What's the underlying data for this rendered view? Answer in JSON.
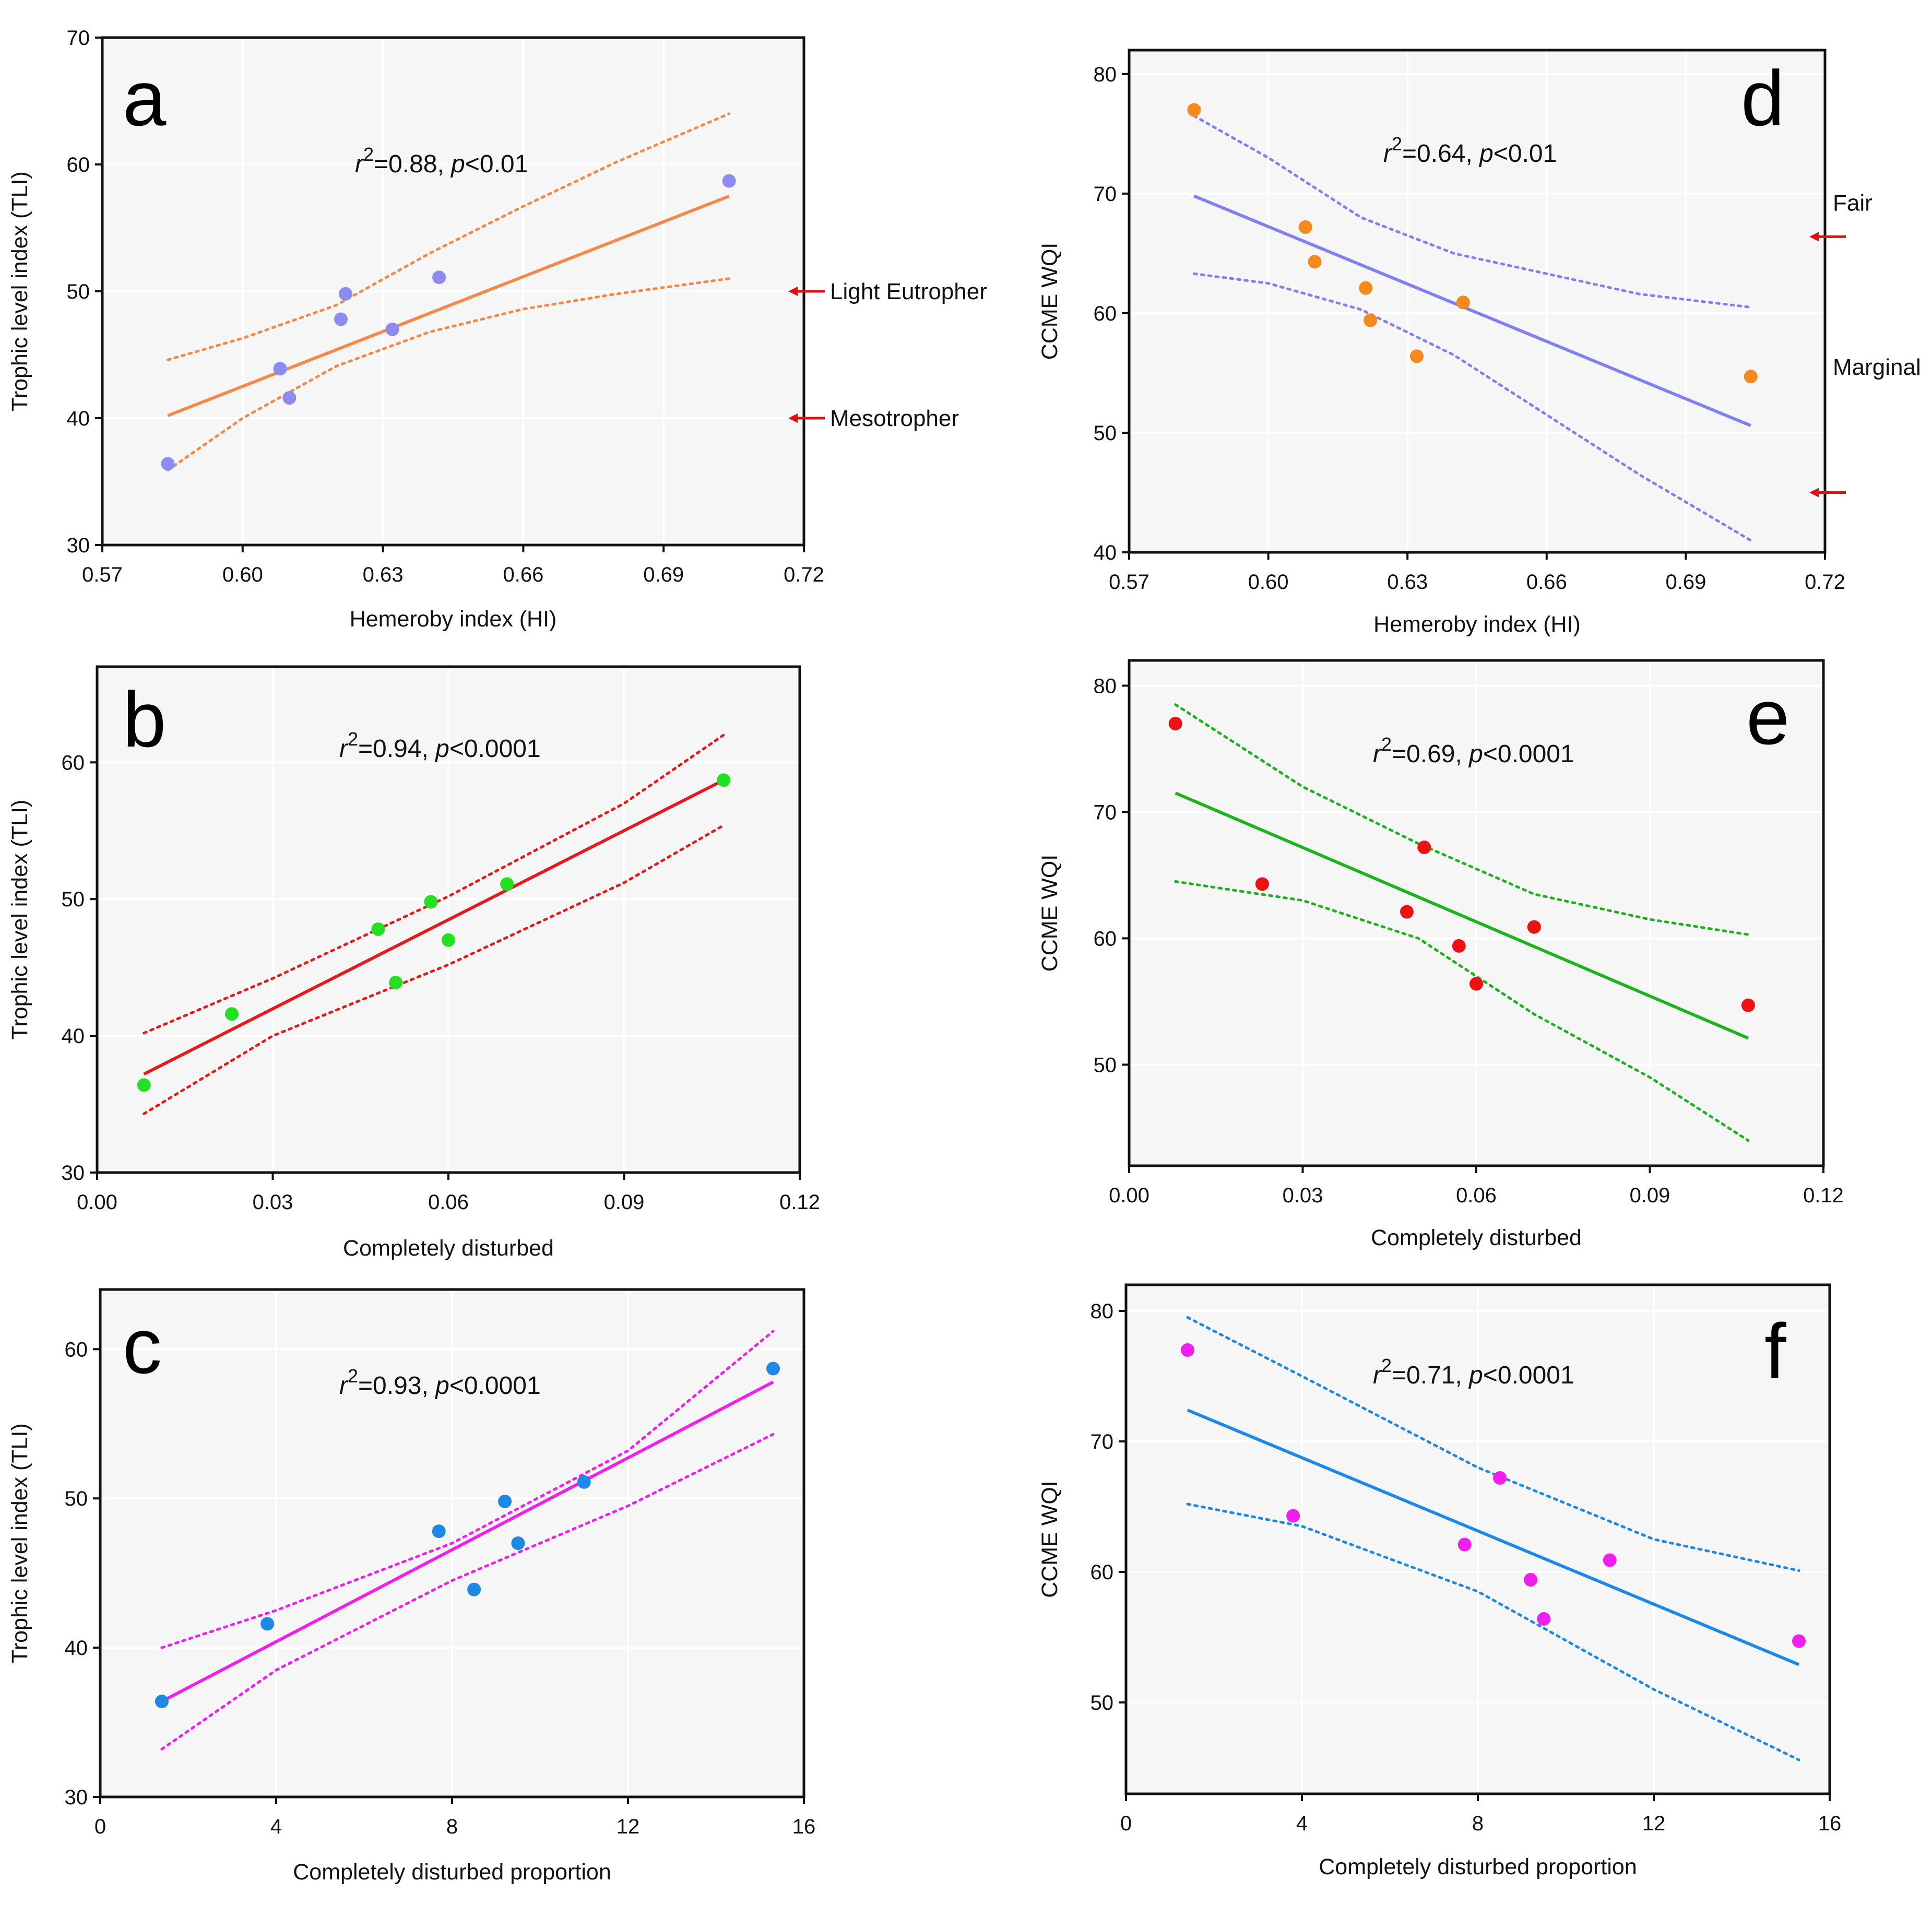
{
  "chart_data": [
    {
      "id": "a",
      "type": "scatter",
      "panel_letter": "a",
      "xlabel": "Hemeroby index (HI)",
      "ylabel": "Trophic  level index (TLI)",
      "xlim": [
        0.57,
        0.72
      ],
      "ylim": [
        30,
        70
      ],
      "xticks": [
        "0.57",
        "0.60",
        "0.63",
        "0.66",
        "0.69",
        "0.72"
      ],
      "yticks": [
        "30",
        "40",
        "50",
        "60",
        "70"
      ],
      "stat_r2": "0.88",
      "stat_p": "0.01",
      "stat_op": "<",
      "point_color": "#8c8cf0",
      "line_color": "#f5894a",
      "band_color": "#f5894a",
      "points": [
        [
          0.584,
          36.4
        ],
        [
          0.608,
          43.9
        ],
        [
          0.61,
          41.6
        ],
        [
          0.621,
          47.8
        ],
        [
          0.622,
          49.8
        ],
        [
          0.632,
          47.0
        ],
        [
          0.642,
          51.1
        ],
        [
          0.704,
          58.7
        ]
      ],
      "fit": [
        [
          0.584,
          40.2
        ],
        [
          0.704,
          57.5
        ]
      ],
      "ci_upper": [
        [
          0.584,
          44.6
        ],
        [
          0.6,
          46.3
        ],
        [
          0.62,
          48.9
        ],
        [
          0.64,
          53.0
        ],
        [
          0.66,
          56.7
        ],
        [
          0.68,
          60.2
        ],
        [
          0.704,
          64.0
        ]
      ],
      "ci_lower": [
        [
          0.584,
          35.9
        ],
        [
          0.6,
          40.0
        ],
        [
          0.62,
          44.1
        ],
        [
          0.64,
          46.8
        ],
        [
          0.66,
          48.6
        ],
        [
          0.68,
          49.8
        ],
        [
          0.704,
          51.0
        ]
      ],
      "ref_lines": [
        {
          "value": 50,
          "label": "Light Eutropher"
        },
        {
          "value": 40,
          "label": "Mesotropher"
        }
      ]
    },
    {
      "id": "b",
      "type": "scatter",
      "panel_letter": "b",
      "xlabel": "Completely disturbed",
      "ylabel": "Trophic  level index (TLI)",
      "xlim": [
        0.0,
        0.12
      ],
      "ylim": [
        30,
        67
      ],
      "xticks": [
        "0.00",
        "0.03",
        "0.06",
        "0.09",
        "0.12"
      ],
      "yticks": [
        "30",
        "40",
        "50",
        "60"
      ],
      "stat_r2": "0.94",
      "stat_p": "0.0001",
      "stat_op": "<",
      "point_color": "#22e022",
      "line_color": "#e51a1a",
      "band_color": "#e51a1a",
      "points": [
        [
          0.008,
          36.4
        ],
        [
          0.023,
          41.6
        ],
        [
          0.048,
          47.8
        ],
        [
          0.051,
          43.9
        ],
        [
          0.057,
          49.8
        ],
        [
          0.06,
          47.0
        ],
        [
          0.07,
          51.1
        ],
        [
          0.107,
          58.7
        ]
      ],
      "fit": [
        [
          0.008,
          37.2
        ],
        [
          0.107,
          58.7
        ]
      ],
      "ci_upper": [
        [
          0.008,
          40.2
        ],
        [
          0.03,
          44.2
        ],
        [
          0.06,
          50.2
        ],
        [
          0.09,
          57.0
        ],
        [
          0.107,
          62.0
        ]
      ],
      "ci_lower": [
        [
          0.008,
          34.3
        ],
        [
          0.03,
          40.0
        ],
        [
          0.06,
          45.2
        ],
        [
          0.09,
          51.2
        ],
        [
          0.107,
          55.4
        ]
      ],
      "ref_lines": []
    },
    {
      "id": "c",
      "type": "scatter",
      "panel_letter": "c",
      "xlabel": "Completely disturbed proportion",
      "ylabel": "Trophic  level index (TLI)",
      "xlim": [
        0,
        16
      ],
      "ylim": [
        30,
        64
      ],
      "xticks": [
        "0",
        "4",
        "8",
        "12",
        "16"
      ],
      "yticks": [
        "30",
        "40",
        "50",
        "60"
      ],
      "stat_r2": "0.93",
      "stat_p": "0.0001",
      "stat_op": "<",
      "point_color": "#1e88e5",
      "line_color": "#f01ff0",
      "band_color": "#f01ff0",
      "points": [
        [
          1.4,
          36.4
        ],
        [
          3.8,
          41.6
        ],
        [
          7.7,
          47.8
        ],
        [
          8.5,
          43.9
        ],
        [
          9.2,
          49.8
        ],
        [
          9.5,
          47.0
        ],
        [
          11.0,
          51.1
        ],
        [
          15.3,
          58.7
        ]
      ],
      "fit": [
        [
          1.4,
          36.4
        ],
        [
          15.3,
          57.8
        ]
      ],
      "ci_upper": [
        [
          1.4,
          40.0
        ],
        [
          4,
          42.5
        ],
        [
          8,
          47.0
        ],
        [
          12,
          53.2
        ],
        [
          15.3,
          61.2
        ]
      ],
      "ci_lower": [
        [
          1.4,
          33.2
        ],
        [
          4,
          38.5
        ],
        [
          8,
          44.5
        ],
        [
          12,
          49.5
        ],
        [
          15.3,
          54.3
        ]
      ],
      "ref_lines": []
    },
    {
      "id": "d",
      "type": "scatter",
      "panel_letter": "d",
      "xlabel": "Hemeroby index (HI)",
      "ylabel": "CCME WQI",
      "xlim": [
        0.57,
        0.72
      ],
      "ylim": [
        40,
        82
      ],
      "xticks": [
        "0.57",
        "0.60",
        "0.63",
        "0.66",
        "0.69",
        "0.72"
      ],
      "yticks": [
        "40",
        "50",
        "60",
        "70",
        "80"
      ],
      "stat_r2": "0.64",
      "stat_p": "0.01",
      "stat_op": "<",
      "point_color": "#f5891e",
      "line_color": "#8080f0",
      "band_color": "#8080f0",
      "points": [
        [
          0.584,
          77.0
        ],
        [
          0.608,
          67.2
        ],
        [
          0.61,
          64.3
        ],
        [
          0.621,
          62.1
        ],
        [
          0.622,
          59.4
        ],
        [
          0.632,
          56.4
        ],
        [
          0.642,
          60.9
        ],
        [
          0.704,
          54.7
        ]
      ],
      "fit": [
        [
          0.584,
          69.8
        ],
        [
          0.704,
          50.6
        ]
      ],
      "ci_upper": [
        [
          0.584,
          76.5
        ],
        [
          0.6,
          73.0
        ],
        [
          0.62,
          68.0
        ],
        [
          0.64,
          65.0
        ],
        [
          0.66,
          63.3
        ],
        [
          0.68,
          61.6
        ],
        [
          0.704,
          60.5
        ]
      ],
      "ci_lower": [
        [
          0.584,
          63.3
        ],
        [
          0.6,
          62.5
        ],
        [
          0.62,
          60.3
        ],
        [
          0.64,
          56.5
        ],
        [
          0.66,
          51.5
        ],
        [
          0.68,
          46.5
        ],
        [
          0.704,
          41.0
        ]
      ],
      "ref_lines": [
        {
          "value": 66.4,
          "label": "Fair"
        },
        {
          "value": 45.0,
          "label": ""
        }
      ],
      "ref_extra_labels": [
        "Marginal"
      ]
    },
    {
      "id": "e",
      "type": "scatter",
      "panel_letter": "e",
      "xlabel": "Completely disturbed",
      "ylabel": "CCME WQI",
      "xlim": [
        0.0,
        0.12
      ],
      "ylim": [
        42,
        82
      ],
      "xticks": [
        "0.00",
        "0.03",
        "0.06",
        "0.09",
        "0.12"
      ],
      "yticks": [
        "50",
        "60",
        "70",
        "80"
      ],
      "stat_r2": "0.69",
      "stat_p": "0.0001",
      "stat_op": "<",
      "point_color": "#ee1111",
      "line_color": "#1fb21f",
      "band_color": "#1fb21f",
      "points": [
        [
          0.008,
          77.0
        ],
        [
          0.023,
          64.3
        ],
        [
          0.048,
          62.1
        ],
        [
          0.051,
          67.2
        ],
        [
          0.057,
          59.4
        ],
        [
          0.06,
          56.4
        ],
        [
          0.07,
          60.9
        ],
        [
          0.107,
          54.7
        ]
      ],
      "fit": [
        [
          0.008,
          71.5
        ],
        [
          0.107,
          52.1
        ]
      ],
      "ci_upper": [
        [
          0.008,
          78.5
        ],
        [
          0.03,
          72.0
        ],
        [
          0.05,
          67.5
        ],
        [
          0.07,
          63.5
        ],
        [
          0.09,
          61.5
        ],
        [
          0.107,
          60.3
        ]
      ],
      "ci_lower": [
        [
          0.008,
          64.5
        ],
        [
          0.03,
          63.0
        ],
        [
          0.05,
          60.0
        ],
        [
          0.07,
          54.0
        ],
        [
          0.09,
          49.0
        ],
        [
          0.107,
          44.0
        ]
      ],
      "ref_lines": []
    },
    {
      "id": "f",
      "type": "scatter",
      "panel_letter": "f",
      "xlabel": "Completely disturbed proportion",
      "ylabel": "CCME WQI",
      "xlim": [
        0,
        16
      ],
      "ylim": [
        43,
        82
      ],
      "xticks": [
        "0",
        "4",
        "8",
        "12",
        "16"
      ],
      "yticks": [
        "50",
        "60",
        "70",
        "80"
      ],
      "stat_r2": "0.71",
      "stat_p": "0.0001",
      "stat_op": "<",
      "point_color": "#f01ff0",
      "line_color": "#1e88e5",
      "band_color": "#1e88e5",
      "points": [
        [
          1.4,
          77.0
        ],
        [
          3.8,
          64.3
        ],
        [
          7.7,
          62.1
        ],
        [
          8.5,
          67.2
        ],
        [
          9.2,
          59.4
        ],
        [
          9.5,
          56.4
        ],
        [
          11.0,
          60.9
        ],
        [
          15.3,
          54.7
        ]
      ],
      "fit": [
        [
          1.4,
          72.4
        ],
        [
          15.3,
          52.9
        ]
      ],
      "ci_upper": [
        [
          1.4,
          79.5
        ],
        [
          4,
          75.0
        ],
        [
          8,
          68.0
        ],
        [
          12,
          62.5
        ],
        [
          15.3,
          60.1
        ]
      ],
      "ci_lower": [
        [
          1.4,
          65.2
        ],
        [
          4,
          63.5
        ],
        [
          8,
          58.5
        ],
        [
          12,
          51.0
        ],
        [
          15.3,
          45.6
        ]
      ],
      "ref_lines": []
    }
  ]
}
